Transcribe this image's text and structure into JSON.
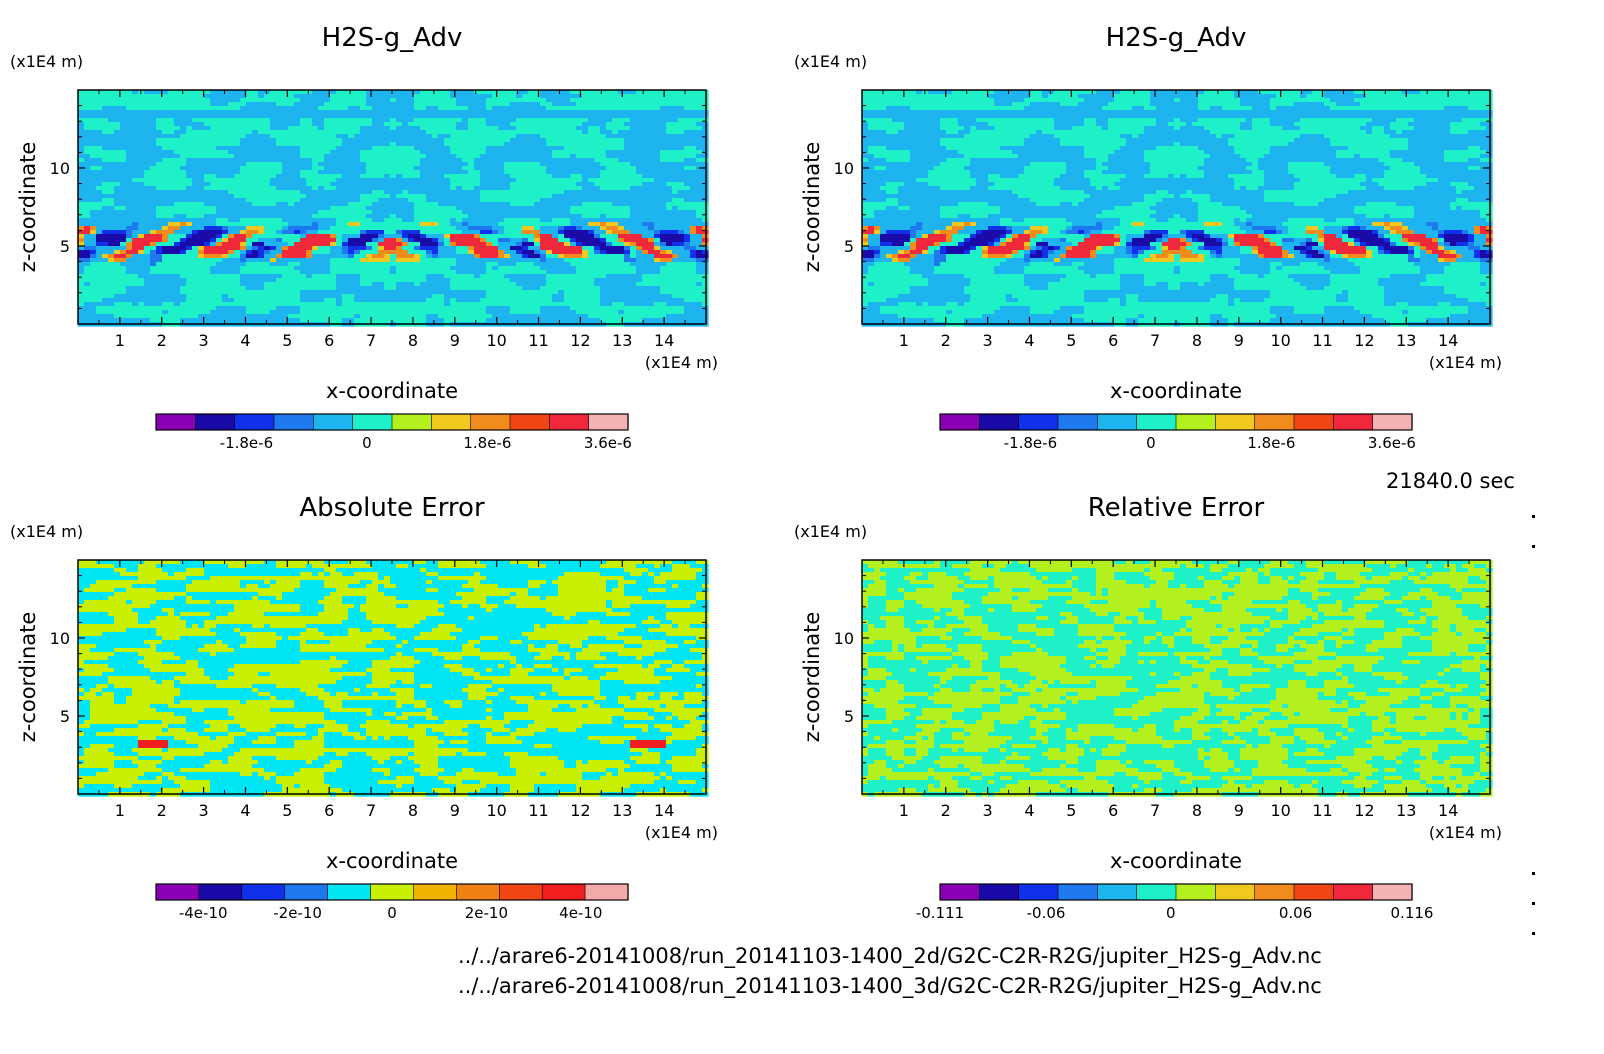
{
  "figure": {
    "time_label": "21840.0 sec",
    "file_paths": [
      "../../arare6-20141008/run_20141103-1400_2d/G2C-C2R-R2G/jupiter_H2S-g_Adv.nc",
      "../../arare6-20141008/run_20141103-1400_3d/G2C-C2R-R2G/jupiter_H2S-g_Adv.nc"
    ]
  },
  "chart_data": [
    {
      "type": "heatmap",
      "title": "H2S-g_Adv",
      "xlabel": "x-coordinate",
      "ylabel": "z-coordinate",
      "x_unit": "(x1E4 m)",
      "y_unit": "(x1E4 m)",
      "xlim": [
        0,
        15
      ],
      "ylim": [
        0,
        15
      ],
      "x_ticks": [
        "1",
        "2",
        "3",
        "4",
        "5",
        "6",
        "7",
        "8",
        "9",
        "10",
        "11",
        "12",
        "13",
        "14"
      ],
      "y_ticks": [
        "5",
        "10"
      ],
      "colorbar": {
        "colors": [
          "#8b00b4",
          "#1a0aa8",
          "#1030ea",
          "#1e78ee",
          "#1eb4f0",
          "#1ef0c8",
          "#b4f01e",
          "#f0c81e",
          "#f08c1e",
          "#f04614",
          "#f0283c",
          "#f5b4b4"
        ],
        "tick_labels": [
          "-1.8e-6",
          "0",
          "1.8e-6",
          "3.6e-6"
        ],
        "tick_values": [
          -1.8e-06,
          0,
          1.8e-06,
          3.6e-06
        ],
        "range": [
          -3.15e-06,
          3.9e-06
        ]
      },
      "field_style": "advection"
    },
    {
      "type": "heatmap",
      "title": "H2S-g_Adv",
      "xlabel": "x-coordinate",
      "ylabel": "z-coordinate",
      "x_unit": "(x1E4 m)",
      "y_unit": "(x1E4 m)",
      "xlim": [
        0,
        15
      ],
      "ylim": [
        0,
        15
      ],
      "x_ticks": [
        "1",
        "2",
        "3",
        "4",
        "5",
        "6",
        "7",
        "8",
        "9",
        "10",
        "11",
        "12",
        "13",
        "14"
      ],
      "y_ticks": [
        "5",
        "10"
      ],
      "colorbar": {
        "colors": [
          "#8b00b4",
          "#1a0aa8",
          "#1030ea",
          "#1e78ee",
          "#1eb4f0",
          "#1ef0c8",
          "#b4f01e",
          "#f0c81e",
          "#f08c1e",
          "#f04614",
          "#f0283c",
          "#f5b4b4"
        ],
        "tick_labels": [
          "-1.8e-6",
          "0",
          "1.8e-6",
          "3.6e-6"
        ],
        "tick_values": [
          -1.8e-06,
          0,
          1.8e-06,
          3.6e-06
        ],
        "range": [
          -3.15e-06,
          3.9e-06
        ]
      },
      "field_style": "advection"
    },
    {
      "type": "heatmap",
      "title": "Absolute Error",
      "xlabel": "x-coordinate",
      "ylabel": "z-coordinate",
      "x_unit": "(x1E4 m)",
      "y_unit": "(x1E4 m)",
      "xlim": [
        0,
        15
      ],
      "ylim": [
        0,
        15
      ],
      "x_ticks": [
        "1",
        "2",
        "3",
        "4",
        "5",
        "6",
        "7",
        "8",
        "9",
        "10",
        "11",
        "12",
        "13",
        "14"
      ],
      "y_ticks": [
        "5",
        "10"
      ],
      "colorbar": {
        "colors": [
          "#8b00b4",
          "#1a0aa8",
          "#1030ea",
          "#1e78ee",
          "#00e6f5",
          "#c8f000",
          "#f0b400",
          "#f08214",
          "#f04614",
          "#f01e1e",
          "#f5aaaa"
        ],
        "tick_labels": [
          "-4e-10",
          "-2e-10",
          "0",
          "2e-10",
          "4e-10"
        ],
        "tick_values": [
          -4e-10,
          -2e-10,
          0,
          2e-10,
          4e-10
        ],
        "range": [
          -5e-10,
          5e-10
        ]
      },
      "field_style": "abs_error"
    },
    {
      "type": "heatmap",
      "title": "Relative Error",
      "xlabel": "x-coordinate",
      "ylabel": "z-coordinate",
      "x_unit": "(x1E4 m)",
      "y_unit": "(x1E4 m)",
      "xlim": [
        0,
        15
      ],
      "ylim": [
        0,
        15
      ],
      "x_ticks": [
        "1",
        "2",
        "3",
        "4",
        "5",
        "6",
        "7",
        "8",
        "9",
        "10",
        "11",
        "12",
        "13",
        "14"
      ],
      "y_ticks": [
        "5",
        "10"
      ],
      "colorbar": {
        "colors": [
          "#8b00b4",
          "#1a0aa8",
          "#1030ea",
          "#1e78ee",
          "#1eb4f0",
          "#1ef0c8",
          "#b4f01e",
          "#f0c81e",
          "#f08c1e",
          "#f04614",
          "#f0283c",
          "#f5b4b4"
        ],
        "tick_labels": [
          "-0.111",
          "-0.06",
          "0",
          "0.06",
          "0.116"
        ],
        "tick_values": [
          -0.111,
          -0.06,
          0,
          0.06,
          0.116
        ],
        "range": [
          -0.111,
          0.116
        ]
      },
      "field_style": "rel_error"
    }
  ]
}
